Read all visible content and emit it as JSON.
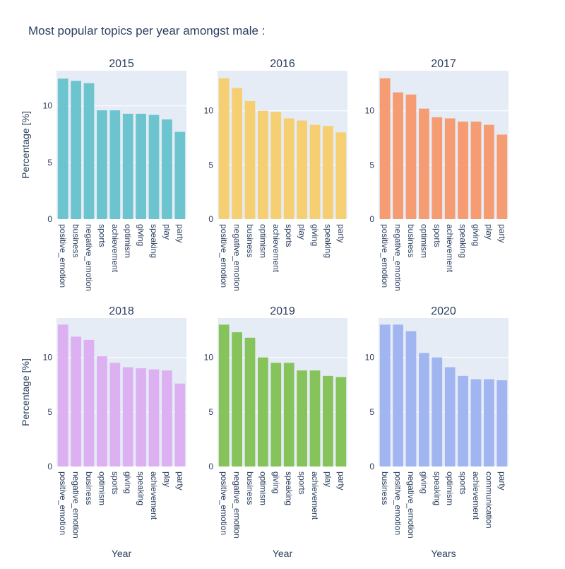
{
  "title": "Most popular topics per year amongst male :",
  "chart_data": [
    {
      "type": "bar",
      "title": "2015",
      "ylabel": "Percentage [%]",
      "xlabel": "",
      "color": "#6cc5ce",
      "ylim": [
        0,
        13.1
      ],
      "yticks": [
        0,
        5,
        10
      ],
      "categories": [
        "positive_emotion",
        "business",
        "negative_emotion",
        "sports",
        "achievement",
        "optimism",
        "giving",
        "speaking",
        "play",
        "party"
      ],
      "values": [
        12.4,
        12.2,
        12.0,
        9.6,
        9.6,
        9.3,
        9.3,
        9.2,
        8.8,
        7.7
      ]
    },
    {
      "type": "bar",
      "title": "2016",
      "ylabel": "",
      "xlabel": "",
      "color": "#f6cf72",
      "ylim": [
        0,
        13.7
      ],
      "yticks": [
        0,
        5,
        10
      ],
      "categories": [
        "positive_emotion",
        "negative_emotion",
        "business",
        "optimism",
        "achievement",
        "sports",
        "play",
        "giving",
        "speaking",
        "party"
      ],
      "values": [
        13.0,
        12.1,
        10.9,
        10.0,
        9.9,
        9.3,
        9.1,
        8.7,
        8.6,
        8.0
      ]
    },
    {
      "type": "bar",
      "title": "2017",
      "ylabel": "",
      "xlabel": "",
      "color": "#f69c72",
      "ylim": [
        0,
        13.7
      ],
      "yticks": [
        0,
        5,
        10
      ],
      "categories": [
        "positive_emotion",
        "negative_emotion",
        "business",
        "optimism",
        "sports",
        "achievement",
        "speaking",
        "giving",
        "play",
        "party"
      ],
      "values": [
        13.0,
        11.7,
        11.5,
        10.2,
        9.4,
        9.3,
        9.0,
        9.0,
        8.7,
        7.8
      ]
    },
    {
      "type": "bar",
      "title": "2018",
      "ylabel": "Percentage [%]",
      "xlabel": "Year",
      "color": "#ddb1f1",
      "ylim": [
        0,
        13.6
      ],
      "yticks": [
        0,
        5,
        10
      ],
      "categories": [
        "positive_emotion",
        "negative_emotion",
        "business",
        "optimism",
        "sports",
        "giving",
        "speaking",
        "achievement",
        "play",
        "party"
      ],
      "values": [
        13.0,
        11.9,
        11.6,
        10.1,
        9.5,
        9.1,
        9.0,
        8.9,
        8.8,
        7.6
      ]
    },
    {
      "type": "bar",
      "title": "2019",
      "ylabel": "",
      "xlabel": "Year",
      "color": "#86c35b",
      "ylim": [
        0,
        13.6
      ],
      "yticks": [
        0,
        5,
        10
      ],
      "categories": [
        "positive_emotion",
        "negative_emotion",
        "business",
        "optimism",
        "giving",
        "speaking",
        "sports",
        "achievement",
        "play",
        "party"
      ],
      "values": [
        13.0,
        12.3,
        11.8,
        10.0,
        9.5,
        9.5,
        8.8,
        8.8,
        8.3,
        8.2
      ]
    },
    {
      "type": "bar",
      "title": "2020",
      "ylabel": "",
      "xlabel": "Years",
      "color": "#a1b6f0",
      "ylim": [
        0,
        13.6
      ],
      "yticks": [
        0,
        5,
        10
      ],
      "categories": [
        "business",
        "positive_emotion",
        "negative_emotion",
        "giving",
        "speaking",
        "optimism",
        "sports",
        "achievement",
        "communication",
        "party"
      ],
      "values": [
        13.0,
        13.0,
        12.4,
        10.4,
        10.0,
        9.1,
        8.3,
        8.0,
        8.0,
        7.9
      ]
    }
  ]
}
